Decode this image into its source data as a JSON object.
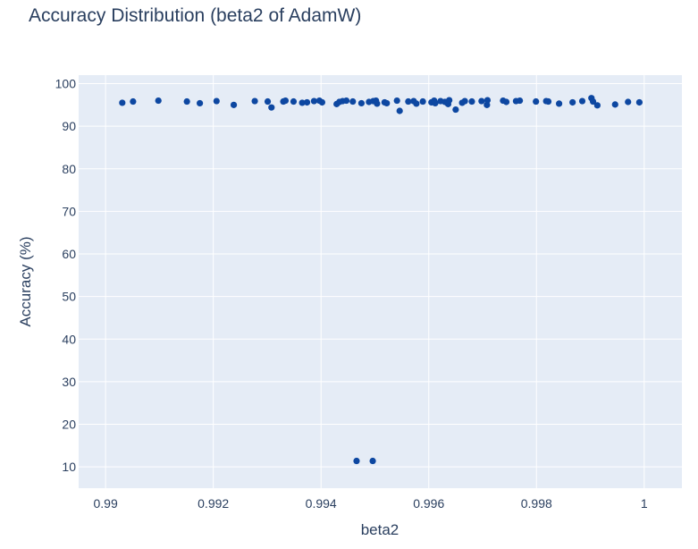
{
  "chart_data": {
    "type": "scatter",
    "title": "Accuracy Distribution (beta2 of AdamW)",
    "xlabel": "beta2",
    "ylabel": "Accuracy (%)",
    "xlim": [
      0.9895,
      1.0007
    ],
    "ylim": [
      5,
      102
    ],
    "x_ticks": [
      0.99,
      0.992,
      0.994,
      0.996,
      0.998,
      1
    ],
    "x_tick_labels": [
      "0.99",
      "0.992",
      "0.994",
      "0.996",
      "0.998",
      "1"
    ],
    "y_ticks": [
      10,
      20,
      30,
      40,
      50,
      60,
      70,
      80,
      90,
      100
    ],
    "y_tick_labels": [
      "10",
      "20",
      "30",
      "40",
      "50",
      "60",
      "70",
      "80",
      "90",
      "100"
    ],
    "grid": true,
    "colors": {
      "marker": "#0d47a1",
      "plot_bg": "#e5ecf6",
      "grid": "#ffffff",
      "text": "#2a3f5f"
    },
    "points": [
      {
        "x": 0.99031,
        "y": 95.5
      },
      {
        "x": 0.99051,
        "y": 95.8
      },
      {
        "x": 0.99098,
        "y": 96.0
      },
      {
        "x": 0.99151,
        "y": 95.8
      },
      {
        "x": 0.99175,
        "y": 95.4
      },
      {
        "x": 0.99206,
        "y": 95.9
      },
      {
        "x": 0.99238,
        "y": 95.0
      },
      {
        "x": 0.99277,
        "y": 95.9
      },
      {
        "x": 0.99301,
        "y": 95.8
      },
      {
        "x": 0.99308,
        "y": 94.4
      },
      {
        "x": 0.9933,
        "y": 95.8
      },
      {
        "x": 0.99334,
        "y": 96.0
      },
      {
        "x": 0.99349,
        "y": 95.8
      },
      {
        "x": 0.99365,
        "y": 95.5
      },
      {
        "x": 0.99374,
        "y": 95.6
      },
      {
        "x": 0.99387,
        "y": 95.9
      },
      {
        "x": 0.99397,
        "y": 96.0
      },
      {
        "x": 0.99402,
        "y": 95.6
      },
      {
        "x": 0.99429,
        "y": 95.2
      },
      {
        "x": 0.99434,
        "y": 95.7
      },
      {
        "x": 0.9944,
        "y": 95.9
      },
      {
        "x": 0.99447,
        "y": 96.0
      },
      {
        "x": 0.99459,
        "y": 95.8
      },
      {
        "x": 0.99475,
        "y": 95.4
      },
      {
        "x": 0.99489,
        "y": 95.7
      },
      {
        "x": 0.99497,
        "y": 95.9
      },
      {
        "x": 0.99502,
        "y": 96.0
      },
      {
        "x": 0.99504,
        "y": 95.3
      },
      {
        "x": 0.99518,
        "y": 95.6
      },
      {
        "x": 0.99522,
        "y": 95.4
      },
      {
        "x": 0.99541,
        "y": 96.0
      },
      {
        "x": 0.99546,
        "y": 93.6
      },
      {
        "x": 0.99562,
        "y": 95.8
      },
      {
        "x": 0.99572,
        "y": 95.9
      },
      {
        "x": 0.99577,
        "y": 95.3
      },
      {
        "x": 0.99589,
        "y": 95.8
      },
      {
        "x": 0.99605,
        "y": 95.6
      },
      {
        "x": 0.9961,
        "y": 96.0
      },
      {
        "x": 0.99612,
        "y": 95.4
      },
      {
        "x": 0.99622,
        "y": 95.9
      },
      {
        "x": 0.9963,
        "y": 95.7
      },
      {
        "x": 0.99636,
        "y": 95.2
      },
      {
        "x": 0.99638,
        "y": 96.1
      },
      {
        "x": 0.9965,
        "y": 93.9
      },
      {
        "x": 0.99662,
        "y": 95.5
      },
      {
        "x": 0.99667,
        "y": 95.9
      },
      {
        "x": 0.9968,
        "y": 95.8
      },
      {
        "x": 0.99698,
        "y": 95.9
      },
      {
        "x": 0.99708,
        "y": 95.0
      },
      {
        "x": 0.99709,
        "y": 96.1
      },
      {
        "x": 0.99738,
        "y": 96.0
      },
      {
        "x": 0.99744,
        "y": 95.7
      },
      {
        "x": 0.99762,
        "y": 95.9
      },
      {
        "x": 0.99769,
        "y": 96.0
      },
      {
        "x": 0.99799,
        "y": 95.8
      },
      {
        "x": 0.99818,
        "y": 95.9
      },
      {
        "x": 0.99822,
        "y": 95.8
      },
      {
        "x": 0.99842,
        "y": 95.3
      },
      {
        "x": 0.99867,
        "y": 95.6
      },
      {
        "x": 0.99885,
        "y": 95.9
      },
      {
        "x": 0.99902,
        "y": 96.6
      },
      {
        "x": 0.99905,
        "y": 95.8
      },
      {
        "x": 0.99913,
        "y": 94.9
      },
      {
        "x": 0.99946,
        "y": 95.1
      },
      {
        "x": 0.9997,
        "y": 95.7
      },
      {
        "x": 0.99991,
        "y": 95.6
      },
      {
        "x": 0.99466,
        "y": 11.4
      },
      {
        "x": 0.99496,
        "y": 11.4
      }
    ]
  }
}
